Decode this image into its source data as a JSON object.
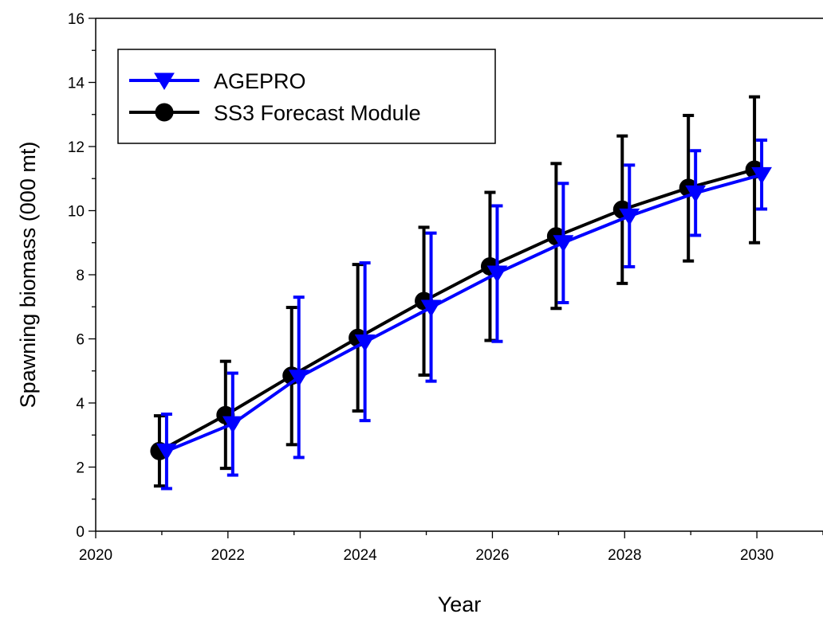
{
  "chart_data": {
    "type": "line",
    "title": "",
    "xlabel": "Year",
    "ylabel": "Spawning biomass (000 mt)",
    "xlim": [
      2020,
      2031
    ],
    "ylim": [
      0,
      16
    ],
    "xticks": [
      2020,
      2022,
      2024,
      2026,
      2028,
      2030
    ],
    "yticks": [
      0,
      2,
      4,
      6,
      8,
      10,
      12,
      14,
      16
    ],
    "grid": false,
    "legend_position": "top-left",
    "series": [
      {
        "name": "AGEPRO",
        "color": "#0000ff",
        "marker": "triangle-down",
        "x": [
          2021,
          2022,
          2023,
          2024,
          2025,
          2026,
          2027,
          2028,
          2029,
          2030
        ],
        "y": [
          2.5,
          3.35,
          4.8,
          5.9,
          6.98,
          8.05,
          9.0,
          9.83,
          10.55,
          11.12
        ],
        "lower": [
          1.33,
          1.75,
          2.3,
          3.45,
          4.68,
          5.92,
          7.13,
          8.25,
          9.23,
          10.05
        ],
        "upper": [
          3.65,
          4.93,
          7.3,
          8.37,
          9.3,
          10.15,
          10.85,
          11.42,
          11.87,
          12.2
        ]
      },
      {
        "name": "SS3 Forecast Module",
        "color": "#000000",
        "marker": "circle",
        "x": [
          2021,
          2022,
          2023,
          2024,
          2025,
          2026,
          2027,
          2028,
          2029,
          2030
        ],
        "y": [
          2.5,
          3.62,
          4.85,
          6.03,
          7.18,
          8.26,
          9.2,
          10.03,
          10.71,
          11.28
        ],
        "lower": [
          1.41,
          1.96,
          2.7,
          3.75,
          4.87,
          5.95,
          6.95,
          7.73,
          8.43,
          9.0
        ],
        "upper": [
          3.6,
          5.3,
          6.98,
          8.32,
          9.48,
          10.57,
          11.47,
          12.33,
          12.97,
          13.55
        ]
      }
    ]
  }
}
